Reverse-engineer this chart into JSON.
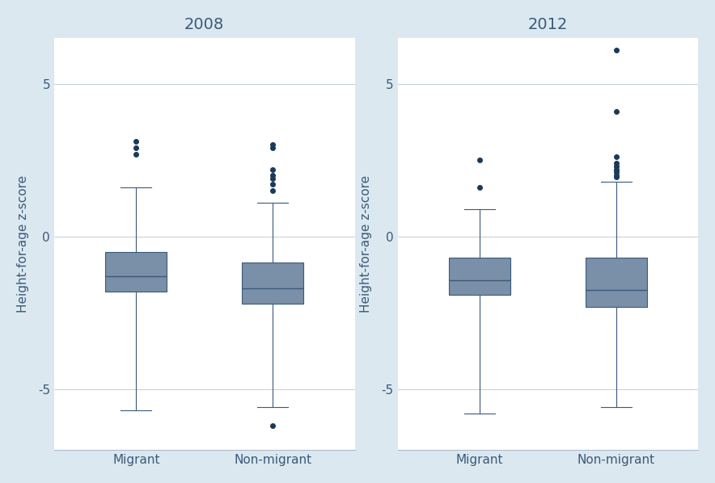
{
  "panels": [
    {
      "title": "2008",
      "groups": [
        "Migrant",
        "Non-migrant"
      ],
      "box_data": [
        {
          "group": "Migrant",
          "q1": -1.8,
          "median": -1.3,
          "q3": -0.5,
          "whislo": -5.7,
          "whishi": 1.6,
          "fliers_high": [
            2.7,
            2.9,
            3.1
          ],
          "fliers_low": []
        },
        {
          "group": "Non-migrant",
          "q1": -2.2,
          "median": -1.7,
          "q3": -0.85,
          "whislo": -5.6,
          "whishi": 1.1,
          "fliers_high": [
            2.9,
            3.0,
            2.2,
            2.0,
            1.9,
            1.7,
            1.5
          ],
          "fliers_low": [
            -6.2
          ]
        }
      ]
    },
    {
      "title": "2012",
      "groups": [
        "Migrant",
        "Non-migrant"
      ],
      "box_data": [
        {
          "group": "Migrant",
          "q1": -1.9,
          "median": -1.45,
          "q3": -0.7,
          "whislo": -5.8,
          "whishi": 0.9,
          "fliers_high": [
            2.5,
            1.6
          ],
          "fliers_low": []
        },
        {
          "group": "Non-migrant",
          "q1": -2.3,
          "median": -1.75,
          "q3": -0.7,
          "whislo": -5.6,
          "whishi": 1.8,
          "fliers_high": [
            6.1,
            4.1,
            2.6,
            2.4,
            2.3,
            2.2,
            2.1,
            2.0,
            1.95
          ],
          "fliers_low": []
        }
      ]
    }
  ],
  "ylabel": "Height-for-age z-score",
  "ylim": [
    -7,
    6.5
  ],
  "yticks": [
    -5,
    0,
    5
  ],
  "bg_outer": "#dce8f0",
  "bg_inner": "#ffffff",
  "box_facecolor": "#7a8fa8",
  "box_edgecolor": "#3a5a7a",
  "line_color": "#3a5a7a",
  "flier_color": "#1a3a5a",
  "title_fontsize": 14,
  "label_fontsize": 11,
  "tick_fontsize": 11
}
